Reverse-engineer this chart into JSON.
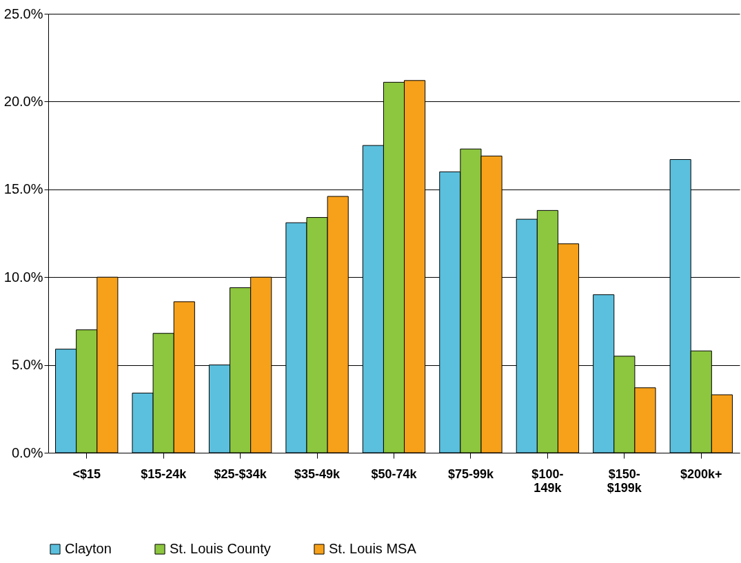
{
  "chart_data": {
    "type": "bar",
    "categories": [
      "<$15",
      "$15-24k",
      "$25-$34k",
      "$35-49k",
      "$50-74k",
      "$75-99k",
      "$100-\n149k",
      "$150-\n$199k",
      "$200k+"
    ],
    "series": [
      {
        "name": "Clayton",
        "color": "#5bc0de",
        "values": [
          5.9,
          3.4,
          5.0,
          13.1,
          17.5,
          16.0,
          13.3,
          9.0,
          16.7
        ]
      },
      {
        "name": "St. Louis County",
        "color": "#8dc63f",
        "values": [
          7.0,
          6.8,
          9.4,
          13.4,
          21.1,
          17.3,
          13.8,
          5.5,
          5.8
        ]
      },
      {
        "name": "St. Louis MSA",
        "color": "#f7a11a",
        "values": [
          10.0,
          8.6,
          10.0,
          14.6,
          21.2,
          16.9,
          11.9,
          3.7,
          3.3
        ]
      }
    ],
    "ylim": [
      0,
      25
    ],
    "yticks": [
      {
        "value": 0,
        "label": "0.0%"
      },
      {
        "value": 5,
        "label": "5.0%"
      },
      {
        "value": 10,
        "label": "10.0%"
      },
      {
        "value": 15,
        "label": "15.0%"
      },
      {
        "value": 20,
        "label": "20.0%"
      },
      {
        "value": 25,
        "label": "25.0%"
      }
    ],
    "grid": "y",
    "legend": "bottom"
  }
}
